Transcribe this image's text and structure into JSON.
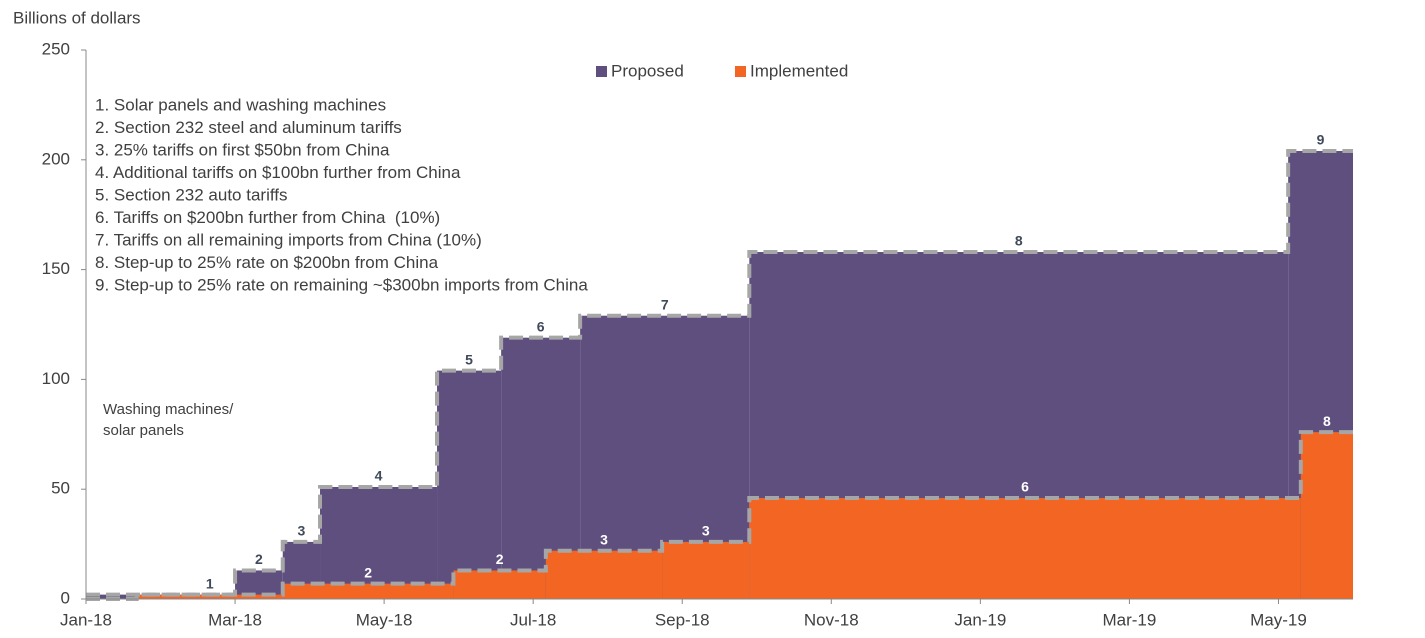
{
  "chart_data": {
    "type": "step-area",
    "y_axis_label": "Billions of dollars",
    "xlim": [
      0,
      17
    ],
    "xticks": [
      {
        "value": 0,
        "label": "Jan-18"
      },
      {
        "value": 2,
        "label": "Mar-18"
      },
      {
        "value": 4,
        "label": "May-18"
      },
      {
        "value": 6,
        "label": "Jul-18"
      },
      {
        "value": 8,
        "label": "Sep-18"
      },
      {
        "value": 10,
        "label": "Nov-18"
      },
      {
        "value": 12,
        "label": "Jan-19"
      },
      {
        "value": 14,
        "label": "Mar-19"
      },
      {
        "value": 16,
        "label": "May-19"
      }
    ],
    "ylim": [
      0,
      250
    ],
    "yticks": [
      0,
      50,
      100,
      150,
      200,
      250
    ],
    "legend": "top",
    "series": [
      {
        "name": "Proposed",
        "color": "#5f4f7f",
        "x": [
          0,
          2,
          2.64,
          3.14,
          4.71,
          5.57,
          6.63,
          8.9,
          16.13
        ],
        "values": [
          2,
          13,
          26,
          51,
          104,
          119,
          129,
          158,
          204
        ],
        "step_labels": [
          null,
          "2",
          "3",
          "4",
          "5",
          "6",
          "7",
          "8",
          "9"
        ]
      },
      {
        "name": "Implemented",
        "color": "#f26522",
        "x": [
          0,
          0.68,
          2.64,
          4.93,
          6.17,
          7.73,
          8.9,
          16.3
        ],
        "values": [
          0,
          2,
          7,
          13,
          22,
          26,
          46,
          76
        ],
        "step_labels": [
          null,
          "1",
          "2",
          "2",
          "3",
          "3",
          "6",
          "8"
        ]
      }
    ],
    "notes": [
      "1. Solar panels and washing machines",
      "2. Section 232 steel and aluminum tariffs",
      "3. 25% tariffs on first $50bn from China",
      "4. Additional tariffs on $100bn further from China",
      "5. Section 232 auto tariffs",
      "6. Tariffs on $200bn further from China  (10%)",
      "7. Tariffs on all remaining imports from China (10%)",
      "8. Step-up to 25% rate on $200bn from China",
      "9. Step-up to 25% rate on remaining ~$300bn imports from China"
    ],
    "annotation": [
      "Washing machines/",
      "solar panels"
    ]
  }
}
